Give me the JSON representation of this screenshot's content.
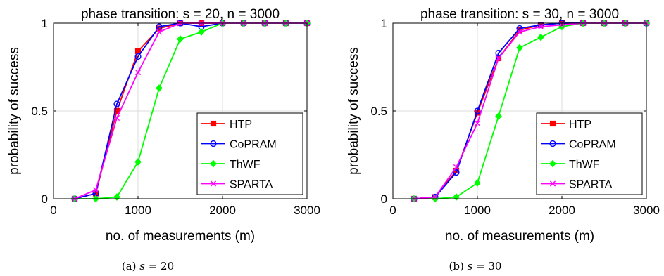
{
  "chart_data": [
    {
      "type": "line",
      "title": "phase transition: s = 20, n = 3000",
      "xlabel": "no. of measurements (m)",
      "ylabel": "probability of success",
      "xlim": [
        0,
        3000
      ],
      "ylim": [
        0,
        1
      ],
      "xticks": [
        "0",
        "1000",
        "2000",
        "3000"
      ],
      "yticks": [
        "0",
        "0.5",
        "1"
      ],
      "grid": true,
      "legend_position": "bottom-right",
      "caption_label": "(a)",
      "caption_var": "s",
      "caption_value": "= 20",
      "x": [
        250,
        500,
        750,
        1000,
        1250,
        1500,
        1750,
        2000,
        2250,
        2500,
        2750,
        3000
      ],
      "series": [
        {
          "name": "HTP",
          "color": "#ff0000",
          "marker": "square",
          "values": [
            0,
            0.03,
            0.5,
            0.84,
            0.97,
            1,
            1,
            1,
            1,
            1,
            1,
            1
          ]
        },
        {
          "name": "CoPRAM",
          "color": "#0000ff",
          "marker": "circle",
          "values": [
            0,
            0.03,
            0.54,
            0.81,
            0.98,
            1,
            0.98,
            1,
            1,
            1,
            1,
            1
          ]
        },
        {
          "name": "ThWF",
          "color": "#00ff00",
          "marker": "diamond",
          "values": [
            0,
            0,
            0.01,
            0.21,
            0.63,
            0.91,
            0.95,
            1,
            1,
            1,
            1,
            1
          ]
        },
        {
          "name": "SPARTA",
          "color": "#ff00ff",
          "marker": "x",
          "values": [
            0,
            0.05,
            0.46,
            0.72,
            0.95,
            1,
            1,
            1,
            1,
            1,
            1,
            1
          ]
        }
      ]
    },
    {
      "type": "line",
      "title": "phase transition: s = 30, n = 3000",
      "xlabel": "no. of measurements (m)",
      "ylabel": "probability of success",
      "xlim": [
        0,
        3000
      ],
      "ylim": [
        0,
        1
      ],
      "xticks": [
        "0",
        "1000",
        "2000",
        "3000"
      ],
      "yticks": [
        "0",
        "0.5",
        "1"
      ],
      "grid": true,
      "legend_position": "bottom-right",
      "caption_label": "(b)",
      "caption_var": "s",
      "caption_value": "= 30",
      "x": [
        250,
        500,
        750,
        1000,
        1250,
        1500,
        1750,
        2000,
        2250,
        2500,
        2750,
        3000
      ],
      "series": [
        {
          "name": "HTP",
          "color": "#ff0000",
          "marker": "square",
          "values": [
            0,
            0.01,
            0.16,
            0.49,
            0.8,
            0.96,
            0.99,
            1,
            1,
            1,
            1,
            1
          ]
        },
        {
          "name": "CoPRAM",
          "color": "#0000ff",
          "marker": "circle",
          "values": [
            0,
            0.01,
            0.15,
            0.5,
            0.83,
            0.97,
            0.99,
            1,
            1,
            1,
            1,
            1
          ]
        },
        {
          "name": "ThWF",
          "color": "#00ff00",
          "marker": "diamond",
          "values": [
            0,
            0,
            0.01,
            0.09,
            0.47,
            0.86,
            0.92,
            0.98,
            1,
            1,
            1,
            1
          ]
        },
        {
          "name": "SPARTA",
          "color": "#ff00ff",
          "marker": "x",
          "values": [
            0,
            0.01,
            0.18,
            0.43,
            0.8,
            0.95,
            0.98,
            0.99,
            1,
            1,
            1,
            1
          ]
        }
      ]
    }
  ]
}
